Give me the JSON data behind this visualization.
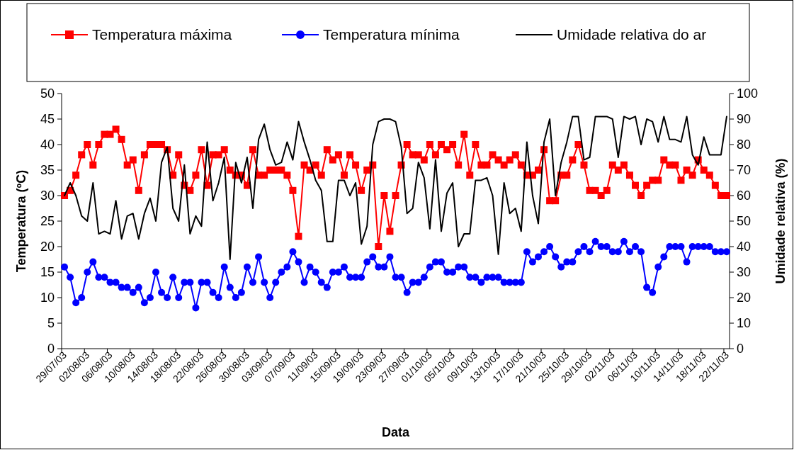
{
  "chart_data": {
    "type": "line",
    "xlabel": "Data",
    "ylabel": "Temperatura (ºC)",
    "y2label": "Umidade relativa (%)",
    "categories": [
      "29/07/03",
      null,
      null,
      null,
      "02/08/03",
      null,
      null,
      null,
      "06/08/03",
      null,
      null,
      null,
      "10/08/03",
      null,
      null,
      null,
      "14/08/03",
      null,
      null,
      null,
      "18/08/03",
      null,
      null,
      null,
      "22/08/03",
      null,
      null,
      null,
      "26/08/03",
      null,
      null,
      null,
      "30/08/03",
      null,
      null,
      null,
      "03/09/03",
      null,
      null,
      null,
      "07/09/03",
      null,
      null,
      null,
      "11/09/03",
      null,
      null,
      null,
      "15/09/03",
      null,
      null,
      null,
      "19/09/03",
      null,
      null,
      null,
      "23/09/03",
      null,
      null,
      null,
      "27/09/03",
      null,
      null,
      null,
      "01/10/03",
      null,
      null,
      null,
      "05/10/03",
      null,
      null,
      null,
      "09/10/03",
      null,
      null,
      null,
      "13/10/03",
      null,
      null,
      null,
      "17/10/03",
      null,
      null,
      null,
      "21/10/03",
      null,
      null,
      null,
      "25/10/03",
      null,
      null,
      null,
      "29/10/03",
      null,
      null,
      null,
      "02/11/03",
      null,
      null,
      null,
      "06/11/03",
      null,
      null,
      null,
      "10/11/03",
      null,
      null,
      null,
      "14/11/03",
      null,
      null,
      null,
      "18/11/03",
      null,
      null,
      null,
      "22/11/03"
    ],
    "ylim": [
      0,
      50
    ],
    "yticks": [
      0,
      5,
      10,
      15,
      20,
      25,
      30,
      35,
      40,
      45,
      50
    ],
    "y2lim": [
      0,
      100
    ],
    "y2ticks": [
      0,
      10,
      20,
      30,
      40,
      50,
      60,
      70,
      80,
      90,
      100
    ],
    "legend": "top",
    "series": [
      {
        "name": "Temperatura máxima",
        "color": "#ff0000",
        "marker": "square",
        "values": [
          30,
          31,
          34,
          38,
          40,
          36,
          40,
          42,
          42,
          43,
          41,
          36,
          37,
          31,
          38,
          40,
          40,
          40,
          39,
          34,
          38,
          32,
          31,
          34,
          39,
          32,
          38,
          38,
          39,
          35,
          34,
          34,
          32,
          39,
          34,
          34,
          35,
          35,
          35,
          34,
          31,
          22,
          36,
          35,
          36,
          34,
          39,
          37,
          38,
          34,
          38,
          36,
          31,
          35,
          36,
          20,
          30,
          23,
          30,
          36,
          40,
          38,
          38,
          37,
          40,
          38,
          40,
          39,
          40,
          36,
          42,
          34,
          40,
          36,
          36,
          38,
          37,
          36,
          37,
          38,
          36,
          34,
          34,
          35,
          39,
          29,
          29,
          34,
          34,
          37,
          40,
          36,
          31,
          31,
          30,
          31,
          36,
          35,
          36,
          34,
          32,
          30,
          32,
          33,
          33,
          37,
          36,
          36,
          33,
          35,
          34,
          37,
          35,
          34,
          32,
          30,
          30
        ]
      },
      {
        "name": "Temperatura mínima",
        "color": "#0000ff",
        "marker": "circle",
        "values": [
          16,
          14,
          9,
          10,
          15,
          17,
          14,
          14,
          13,
          13,
          12,
          12,
          11,
          12,
          9,
          10,
          15,
          11,
          10,
          14,
          10,
          13,
          13,
          8,
          13,
          13,
          11,
          10,
          16,
          12,
          10,
          11,
          16,
          13,
          18,
          13,
          10,
          13,
          15,
          16,
          19,
          17,
          13,
          16,
          15,
          13,
          12,
          15,
          15,
          16,
          14,
          14,
          14,
          17,
          18,
          16,
          16,
          18,
          14,
          14,
          11,
          13,
          13,
          14,
          16,
          17,
          17,
          15,
          15,
          16,
          16,
          14,
          14,
          13,
          14,
          14,
          14,
          13,
          13,
          13,
          13,
          19,
          17,
          18,
          19,
          20,
          18,
          16,
          17,
          17,
          19,
          20,
          19,
          21,
          20,
          20,
          19,
          19,
          21,
          19,
          20,
          19,
          12,
          11,
          16,
          18,
          20,
          20,
          20,
          17,
          20,
          20,
          20,
          20,
          19,
          19,
          19
        ]
      },
      {
        "name": "Umidade relativa do ar",
        "color": "#000000",
        "marker": "none",
        "axis": "y2",
        "values": [
          60,
          65,
          60,
          52,
          50,
          65,
          45,
          46,
          45,
          58,
          43,
          52,
          53,
          43,
          53,
          59,
          50,
          73,
          79,
          55,
          50,
          72,
          45,
          52,
          48,
          81,
          58,
          65,
          75,
          35,
          73,
          65,
          75,
          55,
          82,
          88,
          78,
          72,
          73,
          81,
          74,
          89,
          81,
          74,
          66,
          62,
          42,
          42,
          66,
          66,
          60,
          65,
          41,
          48,
          80,
          89,
          90,
          90,
          89,
          79,
          53,
          55,
          73,
          67,
          47,
          74,
          46,
          61,
          65,
          40,
          45,
          45,
          66,
          66,
          67,
          60,
          37,
          65,
          53,
          55,
          46,
          81,
          60,
          49,
          81,
          90,
          60,
          73,
          81,
          91,
          91,
          74,
          75,
          91,
          91,
          91,
          90,
          75,
          91,
          90,
          91,
          80,
          90,
          89,
          81,
          91,
          82,
          82,
          81,
          91,
          76,
          72,
          83,
          76,
          76,
          76,
          91
        ]
      }
    ]
  }
}
